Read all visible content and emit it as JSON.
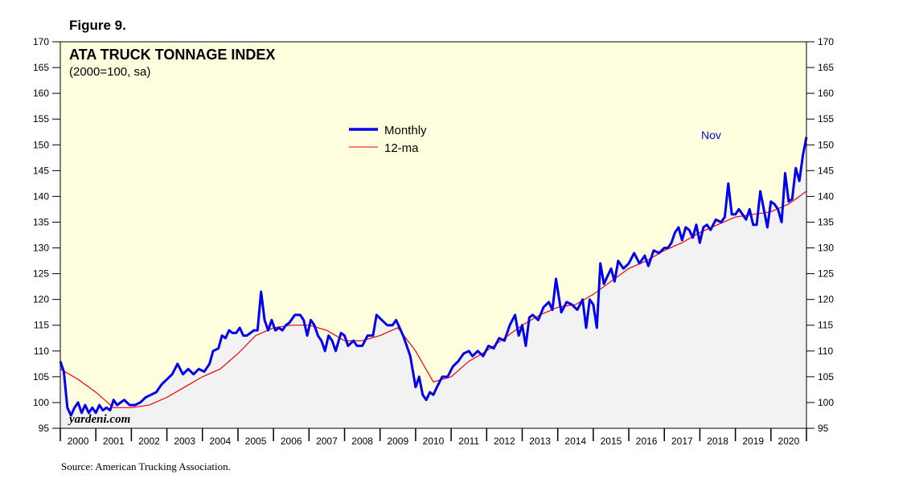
{
  "figure_label": "Figure 9.",
  "source": "Source: American Trucking Association.",
  "watermark": "yardeni.com",
  "colors": {
    "plot_background": "#ffffe0",
    "area_fill": "#f2f2f2",
    "monthly": "#0000ee",
    "ma": "#ee0000",
    "nov_label": "#0000ee"
  },
  "chart_data": {
    "type": "line",
    "title": "ATA TRUCK TONNAGE INDEX",
    "subtitle": "(2000=100, sa)",
    "ylim": [
      95,
      170
    ],
    "yticks": [
      95,
      100,
      105,
      110,
      115,
      120,
      125,
      130,
      135,
      140,
      145,
      150,
      155,
      160,
      165,
      170
    ],
    "xlim": [
      2000,
      2021
    ],
    "year_labels": [
      "2000",
      "2001",
      "2002",
      "2003",
      "2004",
      "2005",
      "2006",
      "2007",
      "2008",
      "2009",
      "2010",
      "2011",
      "2012",
      "2013",
      "2014",
      "2015",
      "2016",
      "2017",
      "2018",
      "2019",
      "2020"
    ],
    "annotation": "Nov",
    "legend": {
      "placement": "top-center",
      "entries": [
        "Monthly",
        "12-ma"
      ]
    },
    "series": [
      {
        "name": "Monthly",
        "points": [
          [
            2000.0,
            108
          ],
          [
            2000.1,
            106
          ],
          [
            2000.2,
            99
          ],
          [
            2000.3,
            97.5
          ],
          [
            2000.4,
            99
          ],
          [
            2000.5,
            100
          ],
          [
            2000.6,
            98
          ],
          [
            2000.7,
            99.5
          ],
          [
            2000.8,
            98
          ],
          [
            2000.9,
            99
          ],
          [
            2001.0,
            98
          ],
          [
            2001.1,
            99.5
          ],
          [
            2001.2,
            98.5
          ],
          [
            2001.3,
            99
          ],
          [
            2001.4,
            98.5
          ],
          [
            2001.5,
            100.5
          ],
          [
            2001.6,
            99.5
          ],
          [
            2001.7,
            100
          ],
          [
            2001.8,
            100.5
          ],
          [
            2001.95,
            99.5
          ],
          [
            2002.1,
            99.5
          ],
          [
            2002.25,
            100
          ],
          [
            2002.4,
            101
          ],
          [
            2002.55,
            101.5
          ],
          [
            2002.7,
            102
          ],
          [
            2002.85,
            103.5
          ],
          [
            2003.0,
            104.5
          ],
          [
            2003.15,
            105.5
          ],
          [
            2003.3,
            107.5
          ],
          [
            2003.45,
            105.5
          ],
          [
            2003.6,
            106.5
          ],
          [
            2003.75,
            105.5
          ],
          [
            2003.9,
            106.5
          ],
          [
            2004.05,
            106
          ],
          [
            2004.2,
            107.5
          ],
          [
            2004.3,
            110
          ],
          [
            2004.45,
            110.5
          ],
          [
            2004.55,
            113
          ],
          [
            2004.65,
            112.5
          ],
          [
            2004.75,
            114
          ],
          [
            2004.85,
            113.5
          ],
          [
            2004.95,
            113.5
          ],
          [
            2005.05,
            114.5
          ],
          [
            2005.15,
            113
          ],
          [
            2005.25,
            113
          ],
          [
            2005.35,
            113.5
          ],
          [
            2005.45,
            114
          ],
          [
            2005.55,
            114
          ],
          [
            2005.65,
            121.5
          ],
          [
            2005.75,
            116
          ],
          [
            2005.85,
            114
          ],
          [
            2005.95,
            116
          ],
          [
            2006.05,
            114
          ],
          [
            2006.15,
            114.5
          ],
          [
            2006.25,
            114
          ],
          [
            2006.35,
            115
          ],
          [
            2006.45,
            115.5
          ],
          [
            2006.6,
            117
          ],
          [
            2006.75,
            117
          ],
          [
            2006.85,
            116
          ],
          [
            2006.95,
            113
          ],
          [
            2007.05,
            116
          ],
          [
            2007.15,
            115
          ],
          [
            2007.25,
            113
          ],
          [
            2007.35,
            112
          ],
          [
            2007.45,
            110
          ],
          [
            2007.55,
            113
          ],
          [
            2007.65,
            112
          ],
          [
            2007.75,
            110
          ],
          [
            2007.9,
            113.5
          ],
          [
            2008.0,
            113
          ],
          [
            2008.1,
            111
          ],
          [
            2008.25,
            112
          ],
          [
            2008.35,
            111
          ],
          [
            2008.5,
            111
          ],
          [
            2008.65,
            113
          ],
          [
            2008.8,
            113
          ],
          [
            2008.9,
            117
          ],
          [
            2009.05,
            116
          ],
          [
            2009.2,
            115
          ],
          [
            2009.35,
            115
          ],
          [
            2009.45,
            116
          ],
          [
            2009.55,
            114.5
          ],
          [
            2009.65,
            113
          ],
          [
            2009.75,
            111
          ],
          [
            2009.85,
            109
          ],
          [
            2009.95,
            105
          ],
          [
            2010.0,
            103
          ],
          [
            2010.1,
            105
          ],
          [
            2010.2,
            101.5
          ],
          [
            2010.3,
            100.5
          ],
          [
            2010.4,
            102
          ],
          [
            2010.5,
            101.5
          ],
          [
            2010.6,
            103
          ],
          [
            2010.75,
            105
          ],
          [
            2010.9,
            105
          ],
          [
            2011.05,
            107
          ],
          [
            2011.2,
            108
          ],
          [
            2011.35,
            109.5
          ],
          [
            2011.5,
            110
          ],
          [
            2011.6,
            109
          ],
          [
            2011.75,
            110
          ],
          [
            2011.9,
            109
          ],
          [
            2012.05,
            111
          ],
          [
            2012.2,
            110.5
          ],
          [
            2012.35,
            112.5
          ],
          [
            2012.5,
            112
          ],
          [
            2012.65,
            115
          ],
          [
            2012.8,
            117
          ],
          [
            2012.9,
            113
          ],
          [
            2013.0,
            115
          ],
          [
            2013.1,
            111
          ],
          [
            2013.2,
            116.5
          ],
          [
            2013.3,
            117
          ],
          [
            2013.45,
            116
          ],
          [
            2013.6,
            118.5
          ],
          [
            2013.75,
            119.5
          ],
          [
            2013.85,
            118
          ],
          [
            2013.95,
            124
          ],
          [
            2014.1,
            117.5
          ],
          [
            2014.25,
            119.5
          ],
          [
            2014.4,
            119
          ],
          [
            2014.55,
            118
          ],
          [
            2014.7,
            120
          ],
          [
            2014.8,
            114.5
          ],
          [
            2014.9,
            120
          ],
          [
            2015.0,
            119
          ],
          [
            2015.1,
            114.5
          ],
          [
            2015.2,
            127
          ],
          [
            2015.3,
            123
          ],
          [
            2015.4,
            124.5
          ],
          [
            2015.5,
            126
          ],
          [
            2015.6,
            123.5
          ],
          [
            2015.7,
            127.5
          ],
          [
            2015.85,
            126
          ],
          [
            2016.0,
            127
          ],
          [
            2016.15,
            129
          ],
          [
            2016.3,
            127
          ],
          [
            2016.45,
            128.5
          ],
          [
            2016.55,
            126.5
          ],
          [
            2016.7,
            129.5
          ],
          [
            2016.85,
            129
          ],
          [
            2017.0,
            130
          ],
          [
            2017.1,
            130
          ],
          [
            2017.2,
            131
          ],
          [
            2017.3,
            133
          ],
          [
            2017.4,
            134
          ],
          [
            2017.5,
            131.5
          ],
          [
            2017.6,
            134
          ],
          [
            2017.7,
            133.5
          ],
          [
            2017.8,
            132
          ],
          [
            2017.9,
            134.5
          ],
          [
            2018.0,
            131
          ],
          [
            2018.1,
            134
          ],
          [
            2018.2,
            134.5
          ],
          [
            2018.3,
            133.5
          ],
          [
            2018.45,
            135.5
          ],
          [
            2018.6,
            135
          ],
          [
            2018.7,
            136
          ],
          [
            2018.8,
            142.5
          ],
          [
            2018.9,
            136.5
          ],
          [
            2019.0,
            136.5
          ],
          [
            2019.1,
            137.5
          ],
          [
            2019.2,
            136.5
          ],
          [
            2019.3,
            135.5
          ],
          [
            2019.4,
            137.5
          ],
          [
            2019.5,
            134.5
          ],
          [
            2019.6,
            134.5
          ],
          [
            2019.7,
            141
          ],
          [
            2019.8,
            137.5
          ],
          [
            2019.9,
            134
          ],
          [
            2020.0,
            139
          ],
          [
            2020.1,
            138.5
          ],
          [
            2020.2,
            137.5
          ],
          [
            2020.3,
            135
          ],
          [
            2020.4,
            144.5
          ],
          [
            2020.5,
            139
          ],
          [
            2020.6,
            139.5
          ],
          [
            2020.7,
            145.5
          ],
          [
            2020.8,
            143
          ],
          [
            2020.9,
            148
          ],
          [
            2021.0,
            151.5
          ]
        ]
      },
      {
        "name": "12-ma",
        "points": [
          [
            2000.0,
            106.5
          ],
          [
            2000.5,
            104.5
          ],
          [
            2001.0,
            102
          ],
          [
            2001.5,
            99
          ],
          [
            2002.0,
            99
          ],
          [
            2002.5,
            99.5
          ],
          [
            2003.0,
            101
          ],
          [
            2003.5,
            103
          ],
          [
            2004.0,
            105
          ],
          [
            2004.5,
            106.5
          ],
          [
            2005.0,
            109.5
          ],
          [
            2005.5,
            113
          ],
          [
            2006.0,
            114.5
          ],
          [
            2006.5,
            115
          ],
          [
            2007.0,
            115
          ],
          [
            2007.5,
            114
          ],
          [
            2008.0,
            112
          ],
          [
            2008.5,
            112
          ],
          [
            2009.0,
            113
          ],
          [
            2009.5,
            114.5
          ],
          [
            2010.0,
            110
          ],
          [
            2010.5,
            104
          ],
          [
            2011.0,
            105
          ],
          [
            2011.5,
            108
          ],
          [
            2012.0,
            110
          ],
          [
            2012.5,
            112.5
          ],
          [
            2013.0,
            115
          ],
          [
            2013.5,
            117
          ],
          [
            2014.0,
            118.5
          ],
          [
            2014.5,
            119
          ],
          [
            2015.0,
            121
          ],
          [
            2015.5,
            123.5
          ],
          [
            2016.0,
            126
          ],
          [
            2016.5,
            127.5
          ],
          [
            2017.0,
            129.5
          ],
          [
            2017.5,
            131
          ],
          [
            2018.0,
            133
          ],
          [
            2018.5,
            134.5
          ],
          [
            2019.0,
            136
          ],
          [
            2019.5,
            136.5
          ],
          [
            2020.0,
            137
          ],
          [
            2020.5,
            138.5
          ],
          [
            2021.0,
            141
          ]
        ]
      }
    ]
  }
}
